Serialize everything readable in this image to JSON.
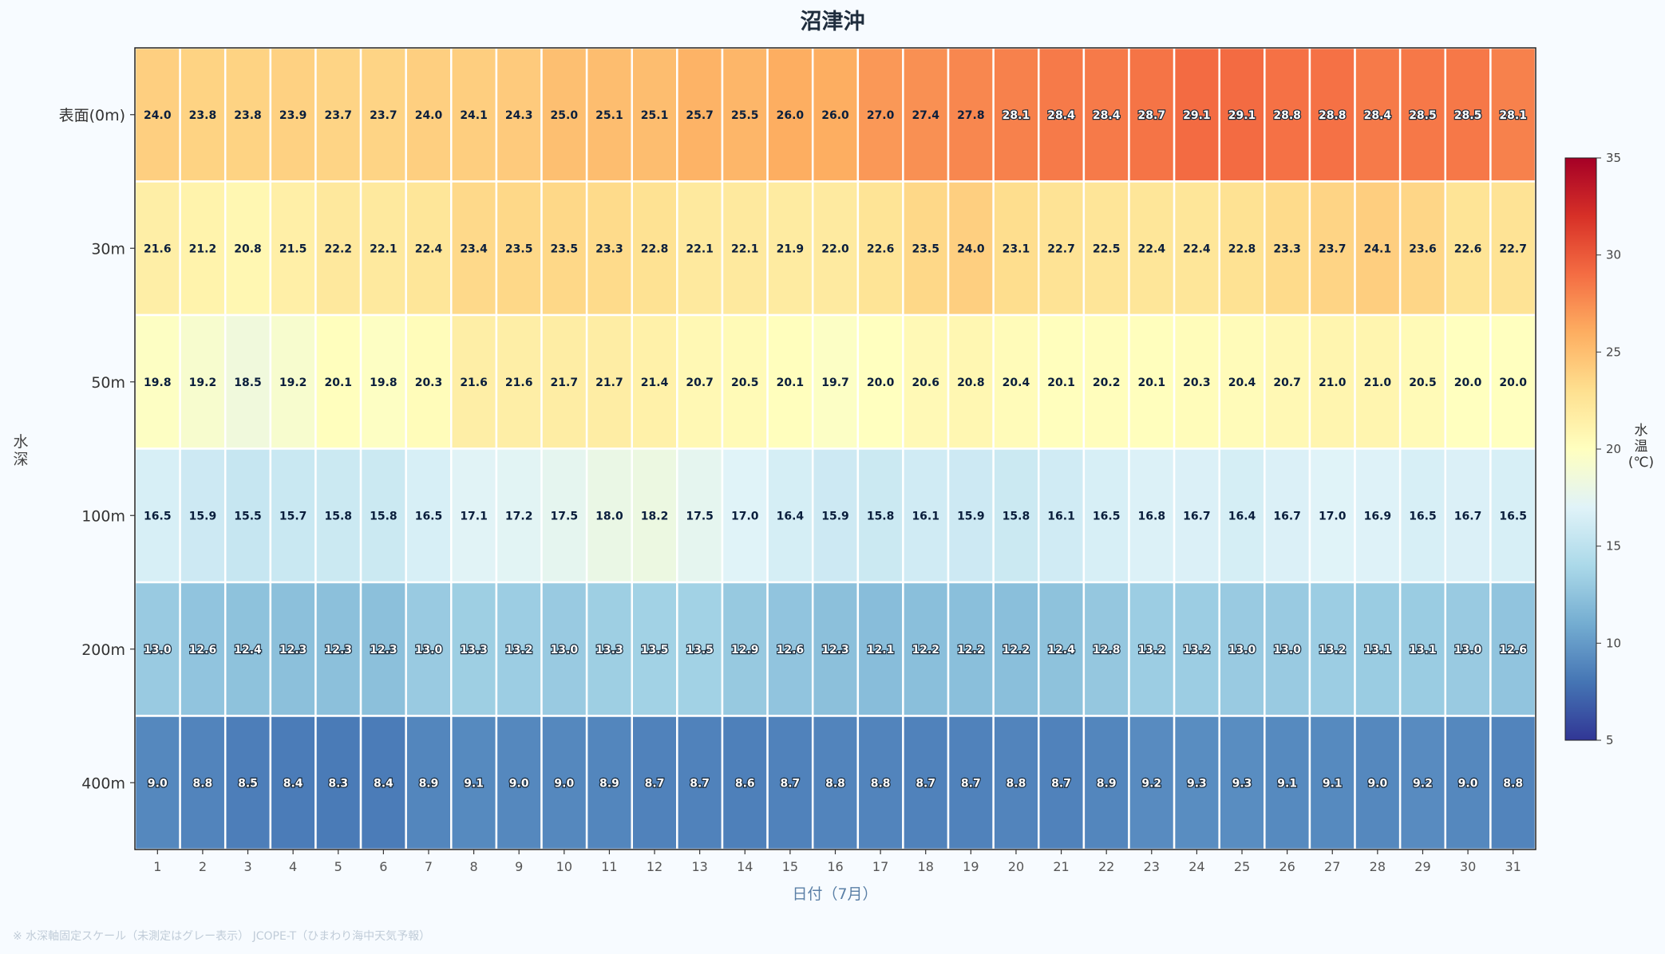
{
  "chart_data": {
    "type": "heatmap",
    "title": "沼津沖",
    "xlabel": "日付（7月）",
    "ylabel": "水深",
    "x": [
      1,
      2,
      3,
      4,
      5,
      6,
      7,
      8,
      9,
      10,
      11,
      12,
      13,
      14,
      15,
      16,
      17,
      18,
      19,
      20,
      21,
      22,
      23,
      24,
      25,
      26,
      27,
      28,
      29,
      30,
      31
    ],
    "y": [
      "表面(0m)",
      "30m",
      "50m",
      "100m",
      "200m",
      "400m"
    ],
    "values": [
      [
        24.0,
        23.8,
        23.8,
        23.9,
        23.7,
        23.7,
        24.0,
        24.1,
        24.3,
        25.0,
        25.1,
        25.1,
        25.7,
        25.5,
        26.0,
        26.0,
        27.0,
        27.4,
        27.8,
        28.1,
        28.4,
        28.4,
        28.7,
        29.1,
        29.1,
        28.8,
        28.8,
        28.4,
        28.5,
        28.5,
        28.1
      ],
      [
        21.6,
        21.2,
        20.8,
        21.5,
        22.2,
        22.1,
        22.4,
        23.4,
        23.5,
        23.5,
        23.3,
        22.8,
        22.1,
        22.1,
        21.9,
        22.0,
        22.6,
        23.5,
        24.0,
        23.1,
        22.7,
        22.5,
        22.4,
        22.4,
        22.8,
        23.3,
        23.7,
        24.1,
        23.6,
        22.6,
        22.7
      ],
      [
        19.8,
        19.2,
        18.5,
        19.2,
        20.1,
        19.8,
        20.3,
        21.6,
        21.6,
        21.7,
        21.7,
        21.4,
        20.7,
        20.5,
        20.1,
        19.7,
        20.0,
        20.6,
        20.8,
        20.4,
        20.1,
        20.2,
        20.1,
        20.3,
        20.4,
        20.7,
        21.0,
        21.0,
        20.5,
        20.0,
        20.0
      ],
      [
        16.5,
        15.9,
        15.5,
        15.7,
        15.8,
        15.8,
        16.5,
        17.1,
        17.2,
        17.5,
        18.0,
        18.2,
        17.5,
        17.0,
        16.4,
        15.9,
        15.8,
        16.1,
        15.9,
        15.8,
        16.1,
        16.5,
        16.8,
        16.7,
        16.4,
        16.7,
        17.0,
        16.9,
        16.5,
        16.7,
        16.5
      ],
      [
        13.0,
        12.6,
        12.4,
        12.3,
        12.3,
        12.3,
        13.0,
        13.3,
        13.2,
        13.0,
        13.3,
        13.5,
        13.5,
        12.9,
        12.6,
        12.3,
        12.1,
        12.2,
        12.2,
        12.2,
        12.4,
        12.8,
        13.2,
        13.2,
        13.0,
        13.0,
        13.2,
        13.1,
        13.1,
        13.0,
        12.6
      ],
      [
        9.0,
        8.8,
        8.5,
        8.4,
        8.3,
        8.4,
        8.9,
        9.1,
        9.0,
        9.0,
        8.9,
        8.7,
        8.7,
        8.6,
        8.7,
        8.8,
        8.8,
        8.7,
        8.7,
        8.8,
        8.7,
        8.9,
        9.2,
        9.3,
        9.3,
        9.1,
        9.1,
        9.0,
        9.2,
        9.0,
        8.8
      ]
    ],
    "colorbar": {
      "label": "水温(℃)",
      "range": [
        5,
        35
      ],
      "ticks": [
        5,
        10,
        15,
        20,
        25,
        30,
        35
      ],
      "colormap": "RdYlBu_r"
    },
    "legend": "right"
  },
  "footnote": "※ 水深軸固定スケール（未測定はグレー表示） JCOPE-T（ひまわり海中天気予報）"
}
